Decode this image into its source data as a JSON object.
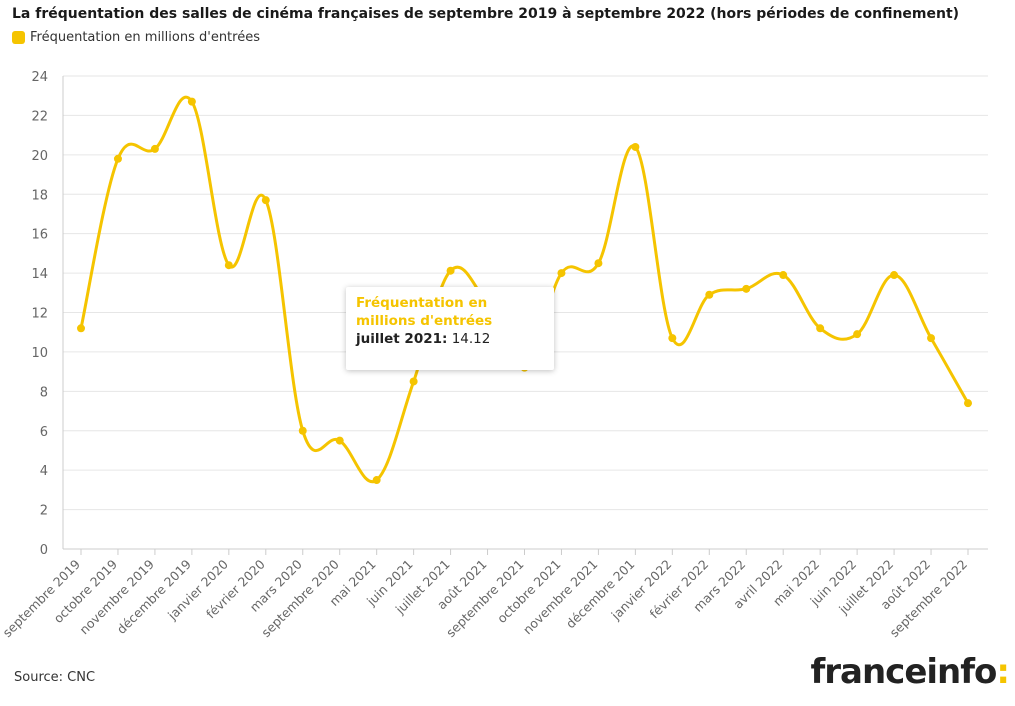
{
  "header": {
    "title": "La fréquentation des salles de cinéma françaises de septembre 2019 à septembre 2022 (hors périodes de confinement)",
    "legend_label": "Fréquentation en millions d'entrées"
  },
  "footer": {
    "source": "Source: CNC",
    "logo_text": "franceinfo",
    "logo_colon": ":"
  },
  "tooltip": {
    "series": "Fréquentation en millions d'entrées",
    "category": "juillet 2021:",
    "value": "14.12"
  },
  "colors": {
    "line": "#f5c400",
    "grid": "#e6e6e6",
    "axis_text": "#666666"
  },
  "chart_data": {
    "type": "line",
    "title": "La fréquentation des salles de cinéma françaises de septembre 2019 à septembre 2022 (hors périodes de confinement)",
    "xlabel": "",
    "ylabel": "",
    "ylim": [
      0,
      24
    ],
    "yticks": [
      0,
      2,
      4,
      6,
      8,
      10,
      12,
      14,
      16,
      18,
      20,
      22,
      24
    ],
    "grid": true,
    "legend": "top-left",
    "categories": [
      "septembre 2019",
      "octobre 2019",
      "novembre 2019",
      "décembre 2019",
      "janvier 2020",
      "février 2020",
      "mars 2020",
      "septembre 2020",
      "mai 2021",
      "juin 2021",
      "juillet 2021",
      "août 2021",
      "septembre 2021",
      "octobre 2021",
      "novembre 2021",
      "décembre 201",
      "janvier 2022",
      "février 2022",
      "mars 2022",
      "avril 2022",
      "mai 2022",
      "juin 2022",
      "juillet 2022",
      "août 2022",
      "septembre 2022"
    ],
    "series": [
      {
        "name": "Fréquentation en millions d'entrées",
        "values": [
          11.2,
          19.8,
          20.3,
          22.7,
          14.4,
          17.7,
          6.0,
          5.5,
          3.5,
          8.5,
          14.12,
          12.4,
          9.2,
          14.0,
          14.5,
          20.4,
          10.7,
          12.9,
          13.2,
          13.9,
          11.2,
          10.9,
          13.9,
          10.7,
          7.4
        ]
      }
    ]
  }
}
